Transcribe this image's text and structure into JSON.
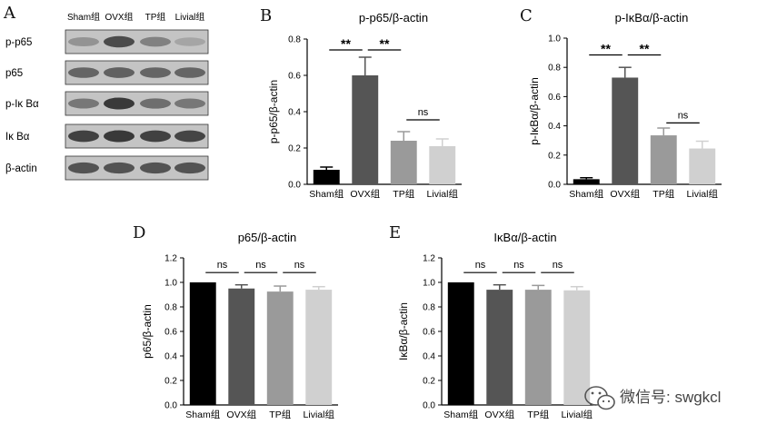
{
  "panels": {
    "a": {
      "letter": "A",
      "lanes": [
        "Sham组",
        "OVX组",
        "TP组",
        "Livial组"
      ],
      "blots": [
        {
          "label": "p-p65",
          "intensity": [
            0.35,
            0.75,
            0.45,
            0.25
          ]
        },
        {
          "label": "p65",
          "intensity": [
            0.6,
            0.62,
            0.6,
            0.6
          ]
        },
        {
          "label": "p-Iκ Bα",
          "intensity": [
            0.5,
            0.85,
            0.55,
            0.5
          ]
        },
        {
          "label": "Iκ Bα",
          "intensity": [
            0.8,
            0.85,
            0.8,
            0.78
          ]
        },
        {
          "label": "β-actin",
          "intensity": [
            0.7,
            0.7,
            0.7,
            0.7
          ]
        }
      ]
    },
    "b": {
      "letter": "B"
    },
    "c": {
      "letter": "C"
    },
    "d": {
      "letter": "D"
    },
    "e": {
      "letter": "E"
    }
  },
  "colors": {
    "sham": "#000000",
    "ovx": "#555555",
    "tp": "#9a9a9a",
    "livial": "#d0d0d0"
  },
  "watermark": {
    "text": "微信号: swgkcl",
    "icon": "wechat-icon"
  },
  "chart_data": [
    {
      "id": "B",
      "type": "bar",
      "title": "p-p65/β-actin",
      "ylabel": "p-p65/β-actin",
      "categories": [
        "Sham组",
        "OVX组",
        "TP组",
        "Livial组"
      ],
      "values": [
        0.08,
        0.6,
        0.24,
        0.21
      ],
      "errors": [
        0.015,
        0.1,
        0.05,
        0.04
      ],
      "ylim": [
        0,
        0.8
      ],
      "yticks": [
        "0.0",
        "0.2",
        "0.4",
        "0.6",
        "0.8"
      ],
      "significance": [
        {
          "label": "**",
          "from": 0,
          "to": 1,
          "level": 0.74
        },
        {
          "label": "**",
          "from": 1,
          "to": 2,
          "level": 0.74
        },
        {
          "label": "ns",
          "from": 2,
          "to": 3,
          "level": 0.355
        }
      ]
    },
    {
      "id": "C",
      "type": "bar",
      "title": "p-IκBα/β-actin",
      "ylabel": "p-IκBα/β-actin",
      "categories": [
        "Sham组",
        "OVX组",
        "TP组",
        "Livial组"
      ],
      "values": [
        0.035,
        0.73,
        0.335,
        0.245
      ],
      "errors": [
        0.01,
        0.07,
        0.05,
        0.05
      ],
      "ylim": [
        0,
        1.0
      ],
      "yticks": [
        "0.0",
        "0.2",
        "0.4",
        "0.6",
        "0.8",
        "1.0"
      ],
      "significance": [
        {
          "label": "**",
          "from": 0,
          "to": 1,
          "level": 0.885
        },
        {
          "label": "**",
          "from": 1,
          "to": 2,
          "level": 0.885
        },
        {
          "label": "ns",
          "from": 2,
          "to": 3,
          "level": 0.42
        }
      ]
    },
    {
      "id": "D",
      "type": "bar",
      "title": "p65/β-actin",
      "ylabel": "p65/β-actin",
      "categories": [
        "Sham组",
        "OVX组",
        "TP组",
        "Livial组"
      ],
      "values": [
        1.0,
        0.95,
        0.925,
        0.94
      ],
      "errors": [
        0.0,
        0.03,
        0.045,
        0.025
      ],
      "ylim": [
        0,
        1.2
      ],
      "yticks": [
        "0.0",
        "0.2",
        "0.4",
        "0.6",
        "0.8",
        "1.0",
        "1.2"
      ],
      "significance": [
        {
          "label": "ns",
          "from": 0,
          "to": 1,
          "level": 1.08
        },
        {
          "label": "ns",
          "from": 1,
          "to": 2,
          "level": 1.08
        },
        {
          "label": "ns",
          "from": 2,
          "to": 3,
          "level": 1.08
        }
      ]
    },
    {
      "id": "E",
      "type": "bar",
      "title": "IκBα/β-actin",
      "ylabel": "IκBα/β-actin",
      "categories": [
        "Sham组",
        "OVX组",
        "TP组",
        "Livial组"
      ],
      "values": [
        1.0,
        0.94,
        0.94,
        0.935
      ],
      "errors": [
        0.0,
        0.04,
        0.035,
        0.03
      ],
      "ylim": [
        0,
        1.2
      ],
      "yticks": [
        "0.0",
        "0.2",
        "0.4",
        "0.6",
        "0.8",
        "1.0",
        "1.2"
      ],
      "significance": [
        {
          "label": "ns",
          "from": 0,
          "to": 1,
          "level": 1.08
        },
        {
          "label": "ns",
          "from": 1,
          "to": 2,
          "level": 1.08
        },
        {
          "label": "ns",
          "from": 2,
          "to": 3,
          "level": 1.08
        }
      ]
    }
  ]
}
